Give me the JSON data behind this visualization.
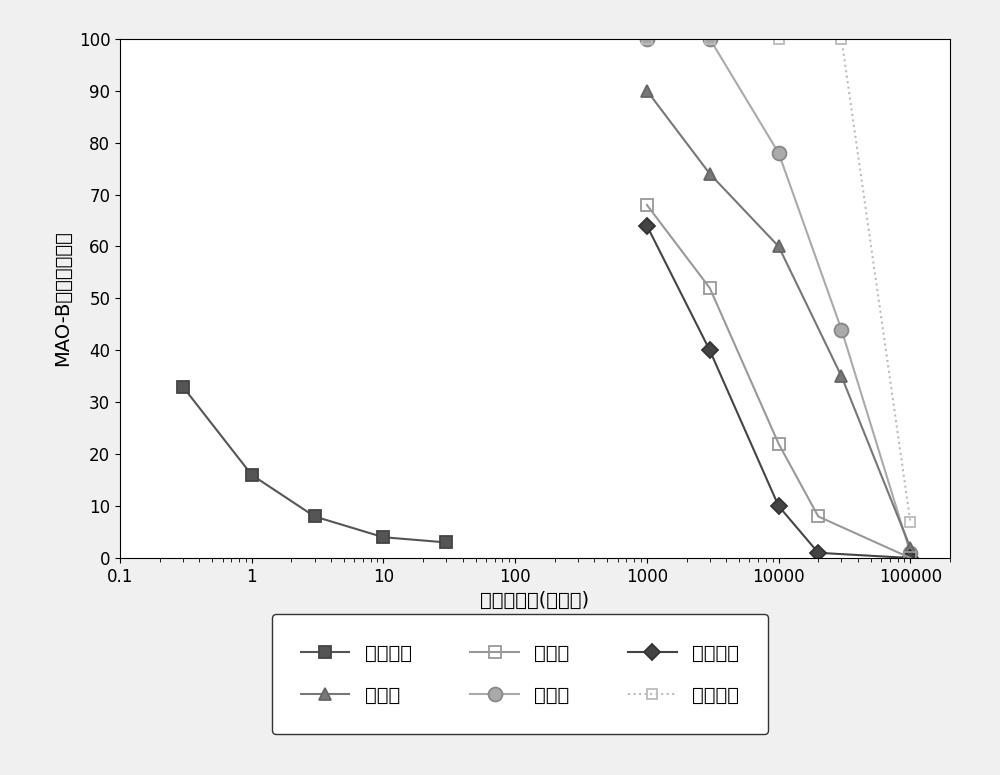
{
  "xlabel": "化合物浓度(微摩尔)",
  "ylabel": "MAO-B活性的百分比",
  "xlim": [
    0.1,
    200000
  ],
  "ylim": [
    0,
    100
  ],
  "series": [
    {
      "name": "司来吉兰",
      "x": [
        0.3,
        1,
        3,
        10,
        30
      ],
      "y": [
        33,
        16,
        8,
        4,
        3
      ],
      "color": "#555555",
      "marker": "s",
      "marker_face": "#555555",
      "marker_edge": "#444444",
      "linestyle": "-",
      "linewidth": 1.5,
      "markersize": 8,
      "fillstyle": "full"
    },
    {
      "name": "降烟碱",
      "x": [
        1000,
        3000,
        10000,
        30000,
        100000
      ],
      "y": [
        100,
        100,
        78,
        44,
        1
      ],
      "color": "#aaaaaa",
      "marker": "o",
      "marker_face": "#aaaaaa",
      "marker_edge": "#888888",
      "linestyle": "-",
      "linewidth": 1.5,
      "markersize": 10,
      "fillstyle": "full"
    },
    {
      "name": "新烟碱",
      "x": [
        1000,
        3000,
        10000,
        30000,
        100000
      ],
      "y": [
        90,
        74,
        60,
        35,
        2
      ],
      "color": "#777777",
      "marker": "^",
      "marker_face": "#777777",
      "marker_edge": "#666666",
      "linestyle": "-",
      "linewidth": 1.5,
      "markersize": 9,
      "fillstyle": "full"
    },
    {
      "name": "异麦斯明",
      "x": [
        1000,
        3000,
        10000,
        20000,
        100000
      ],
      "y": [
        64,
        40,
        10,
        1,
        0
      ],
      "color": "#444444",
      "marker": "D",
      "marker_face": "#444444",
      "marker_edge": "#333333",
      "linestyle": "-",
      "linewidth": 1.5,
      "markersize": 8,
      "fillstyle": "full"
    },
    {
      "name": "麦斯明",
      "x": [
        1000,
        3000,
        10000,
        20000,
        100000
      ],
      "y": [
        68,
        52,
        22,
        8,
        0
      ],
      "color": "#999999",
      "marker": "s",
      "marker_face": "none",
      "marker_edge": "#999999",
      "linestyle": "-",
      "linewidth": 1.5,
      "markersize": 8,
      "fillstyle": "none"
    },
    {
      "name": "新烟草碱",
      "x": [
        1000,
        3000,
        10000,
        30000,
        100000
      ],
      "y": [
        100,
        100,
        100,
        100,
        7
      ],
      "color": "#bbbbbb",
      "marker": "s",
      "marker_face": "none",
      "marker_edge": "#bbbbbb",
      "linestyle": "dotted",
      "linewidth": 1.5,
      "markersize": 7,
      "fillstyle": "none"
    }
  ],
  "legend_order": [
    "司来吉兰",
    "新烟碱",
    "麦斯明",
    "降烟碱",
    "异麦斯明",
    "新烟草碱"
  ],
  "background_color": "#f0f0f0",
  "plot_bg_color": "#ffffff",
  "font_size": 14,
  "tick_font_size": 12
}
